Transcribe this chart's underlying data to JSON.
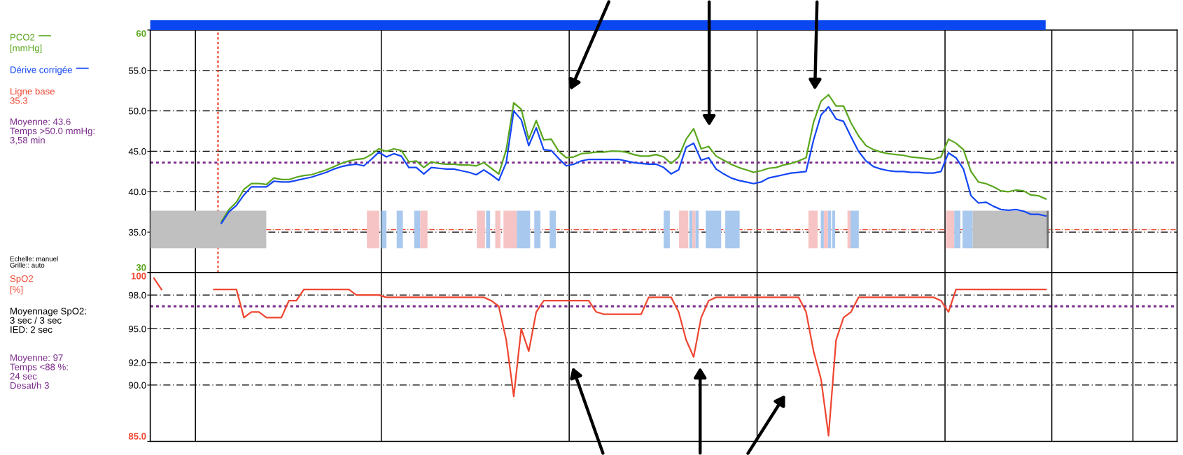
{
  "chart_data": [
    {
      "type": "line",
      "ylabel": "[mmHg]",
      "categories": [
        null,
        null,
        null,
        null,
        null,
        null,
        null,
        null,
        null,
        null,
        null,
        null,
        null,
        null,
        null,
        null,
        null,
        null,
        null,
        null,
        null,
        null,
        null,
        null,
        null,
        null,
        null,
        null,
        null,
        null,
        null,
        null,
        null,
        null,
        null,
        null,
        null,
        null,
        null,
        null,
        null,
        null,
        null,
        null,
        null,
        null,
        null,
        null,
        null,
        null,
        null,
        null,
        null,
        null,
        null,
        null,
        null,
        null,
        null,
        null,
        null,
        null,
        null,
        null,
        null,
        null,
        null,
        null,
        null,
        null,
        null,
        null,
        null,
        null,
        null,
        null,
        null,
        null,
        null,
        null,
        null,
        null,
        null,
        null,
        null,
        null,
        null,
        null,
        null,
        null,
        null,
        null,
        null,
        null,
        null,
        null,
        null,
        null,
        null,
        null,
        null,
        null,
        null,
        null,
        null,
        null,
        null,
        null,
        null,
        null,
        null,
        null,
        null,
        null,
        null,
        null,
        null,
        null,
        null,
        null,
        null,
        null,
        null,
        null,
        null,
        null,
        null,
        null,
        null,
        null,
        null,
        null,
        null,
        null,
        null,
        null,
        null
      ],
      "series": [
        {
          "name": "PCO2",
          "color": "#5aa61e",
          "values": [
            null,
            null,
            null,
            null,
            null,
            null,
            null,
            null,
            null,
            36.3,
            37.8,
            38.7,
            40.3,
            41.0,
            41.0,
            40.9,
            41.7,
            41.5,
            41.5,
            41.8,
            42.0,
            42.1,
            42.4,
            42.7,
            43.1,
            43.5,
            43.8,
            44.0,
            44.1,
            44.6,
            45.3,
            45.0,
            45.3,
            45.1,
            43.7,
            43.8,
            43.0,
            43.7,
            43.5,
            43.4,
            43.4,
            43.3,
            43.3,
            43.2,
            43.6,
            42.9,
            42.2,
            45.2,
            51.0,
            50.2,
            46.5,
            48.8,
            46.4,
            46.5,
            45.0,
            44.2,
            44.3,
            44.7,
            44.8,
            44.9,
            44.9,
            45.0,
            45.0,
            44.9,
            44.6,
            44.4,
            44.4,
            44.6,
            44.3,
            43.5,
            44.3,
            46.5,
            47.8,
            45.3,
            45.6,
            44.4,
            43.9,
            43.4,
            43.0,
            42.7,
            42.4,
            42.6,
            42.9,
            43.0,
            43.3,
            43.5,
            43.8,
            44.2,
            48.6,
            51.2,
            52.0,
            50.6,
            50.6,
            48.5,
            46.9,
            45.7,
            45.2,
            44.9,
            44.7,
            44.6,
            44.5,
            44.3,
            44.2,
            44.1,
            44.0,
            44.3,
            46.5,
            46.0,
            45.2,
            42.5,
            41.2,
            41.0,
            40.6,
            40.1,
            40.0,
            40.2,
            40.1,
            39.6,
            39.5,
            39.1,
            null,
            null,
            null,
            null,
            null,
            null,
            null,
            null,
            null,
            null,
            null,
            null,
            null,
            null,
            null,
            null,
            null
          ]
        },
        {
          "name": "Dérive corrigée",
          "color": "#1446f5",
          "values": [
            null,
            null,
            null,
            null,
            null,
            null,
            null,
            null,
            null,
            36.1,
            37.5,
            38.3,
            39.6,
            40.6,
            40.6,
            40.6,
            41.3,
            41.2,
            41.2,
            41.4,
            41.6,
            41.8,
            42.1,
            42.4,
            42.8,
            43.1,
            43.3,
            43.4,
            43.2,
            44.0,
            44.9,
            44.3,
            44.7,
            44.4,
            43.0,
            43.0,
            42.2,
            43.0,
            42.9,
            42.8,
            42.8,
            42.6,
            42.4,
            42.1,
            42.7,
            42.1,
            41.4,
            43.6,
            50.0,
            48.9,
            45.7,
            47.9,
            45.2,
            45.1,
            44.1,
            43.2,
            43.4,
            43.8,
            44.0,
            44.0,
            44.0,
            44.0,
            44.0,
            43.8,
            43.6,
            43.5,
            43.4,
            43.4,
            43.0,
            42.2,
            42.7,
            45.5,
            46.0,
            43.9,
            44.2,
            42.8,
            42.2,
            41.7,
            41.4,
            41.2,
            41.0,
            41.2,
            41.7,
            41.9,
            42.1,
            42.3,
            42.4,
            42.5,
            46.4,
            49.5,
            50.5,
            49.0,
            48.7,
            46.8,
            45.0,
            43.8,
            43.1,
            42.8,
            42.6,
            42.5,
            42.5,
            42.4,
            42.4,
            42.3,
            42.3,
            42.5,
            44.8,
            44.2,
            42.8,
            39.5,
            38.6,
            38.7,
            38.2,
            37.8,
            37.7,
            37.8,
            37.6,
            37.2,
            37.2,
            37.0,
            null,
            null,
            null,
            null,
            null,
            null,
            null,
            null,
            null,
            null,
            null,
            null,
            null,
            null,
            null,
            null,
            null
          ]
        }
      ],
      "ylim": [
        30,
        60
      ],
      "yticks": [
        30,
        {
          "value": 35,
          "label": "35.0"
        },
        {
          "value": 40,
          "label": "40.0"
        },
        {
          "value": 45,
          "label": "45.0"
        },
        {
          "value": 50,
          "label": "50.0"
        },
        {
          "value": 55,
          "label": "55.0"
        },
        60
      ],
      "grid": "y",
      "legend": "left",
      "tick_labels": "y",
      "line_style": "solid",
      "marker": "none",
      "ref_lines": [
        {
          "axis": "y",
          "value": 35.3,
          "label": "Ligne base\n35.3",
          "color": "#ee4630",
          "line_style": "dashed"
        },
        {
          "axis": "y",
          "value": 43.6,
          "label": "Moyenne: 43.6\nTemps >50.0 mmHg:\n3,58 min",
          "color": "#7a2a8a",
          "line_style": "dotted"
        }
      ],
      "annotations": [
        "Echelle: manuel\nGrille:: auto"
      ]
    },
    {
      "type": "line",
      "ylabel": "[%]",
      "categories": [
        null,
        null,
        null,
        null,
        null,
        null,
        null,
        null,
        null,
        null,
        null,
        null,
        null,
        null,
        null,
        null,
        null,
        null,
        null,
        null,
        null,
        null,
        null,
        null,
        null,
        null,
        null,
        null,
        null,
        null,
        null,
        null,
        null,
        null,
        null,
        null,
        null,
        null,
        null,
        null,
        null,
        null,
        null,
        null,
        null,
        null,
        null,
        null,
        null,
        null,
        null,
        null,
        null,
        null,
        null,
        null,
        null,
        null,
        null,
        null,
        null,
        null,
        null,
        null,
        null,
        null,
        null,
        null,
        null,
        null,
        null,
        null,
        null,
        null,
        null,
        null,
        null,
        null,
        null,
        null,
        null,
        null,
        null,
        null,
        null,
        null,
        null,
        null,
        null,
        null,
        null,
        null,
        null,
        null,
        null,
        null,
        null,
        null,
        null,
        null,
        null,
        null,
        null,
        null,
        null,
        null,
        null,
        null,
        null,
        null,
        null,
        null,
        null,
        null,
        null,
        null,
        null,
        null,
        null,
        null,
        null,
        null,
        null,
        null,
        null,
        null,
        null,
        null,
        null,
        null,
        null,
        null,
        null,
        null,
        null,
        null,
        null
      ],
      "series": [
        {
          "name": "SpO2",
          "color": "#ee4630",
          "values": [
            99.5,
            98.5,
            null,
            null,
            null,
            null,
            null,
            null,
            98.5,
            98.5,
            98.5,
            98.5,
            96.0,
            96.5,
            96.5,
            96.0,
            96.0,
            96.0,
            97.5,
            97.5,
            98.5,
            98.5,
            98.5,
            98.5,
            98.5,
            98.5,
            98.5,
            98.0,
            98.0,
            98.0,
            98.0,
            97.8,
            97.8,
            97.8,
            97.8,
            97.8,
            97.8,
            97.8,
            97.8,
            97.8,
            97.8,
            97.8,
            97.8,
            97.8,
            97.8,
            97.5,
            97.0,
            94.0,
            89.0,
            95.0,
            93.0,
            96.5,
            97.5,
            97.5,
            97.5,
            97.5,
            97.5,
            97.5,
            97.5,
            96.5,
            96.3,
            96.3,
            96.3,
            96.3,
            96.3,
            96.3,
            97.8,
            97.8,
            97.8,
            97.8,
            96.5,
            94.0,
            92.5,
            96.0,
            97.5,
            97.8,
            97.8,
            97.8,
            97.8,
            97.8,
            97.8,
            97.8,
            97.8,
            97.8,
            97.8,
            97.8,
            97.8,
            96.5,
            93.0,
            90.5,
            85.5,
            94.0,
            96.0,
            96.5,
            97.8,
            97.8,
            97.8,
            97.8,
            97.8,
            97.8,
            97.8,
            97.8,
            97.8,
            97.8,
            97.8,
            97.5,
            96.5,
            98.5,
            98.5,
            98.5,
            98.5,
            98.5,
            98.5,
            98.5,
            98.5,
            98.5,
            98.5,
            98.5,
            98.5,
            98.5,
            null,
            null,
            null,
            null,
            null,
            null,
            null,
            null,
            null,
            null,
            null,
            null,
            null,
            null,
            null,
            null,
            null
          ]
        }
      ],
      "ylim": [
        85,
        100
      ],
      "yticks": [
        {
          "value": 85,
          "label": "85.0"
        },
        {
          "value": 90,
          "label": "90.0"
        },
        {
          "value": 92,
          "label": "92.0"
        },
        {
          "value": 95,
          "label": "95.0"
        },
        {
          "value": 98,
          "label": "98.0"
        },
        100
      ],
      "grid": "y",
      "tick_labels": "y",
      "line_style": "solid",
      "marker": "none",
      "ref_lines": [
        {
          "axis": "y",
          "value": 97,
          "label": "Moyenne: 97\nTemps <88 %:\n24 sec\nDesat/h 3",
          "color": "#7a2a8a",
          "line_style": "dotted"
        }
      ],
      "annotations": [
        "Moyennage SpO2:\n3 sec / 3 sec\nIED: 2 sec"
      ]
    }
  ]
}
